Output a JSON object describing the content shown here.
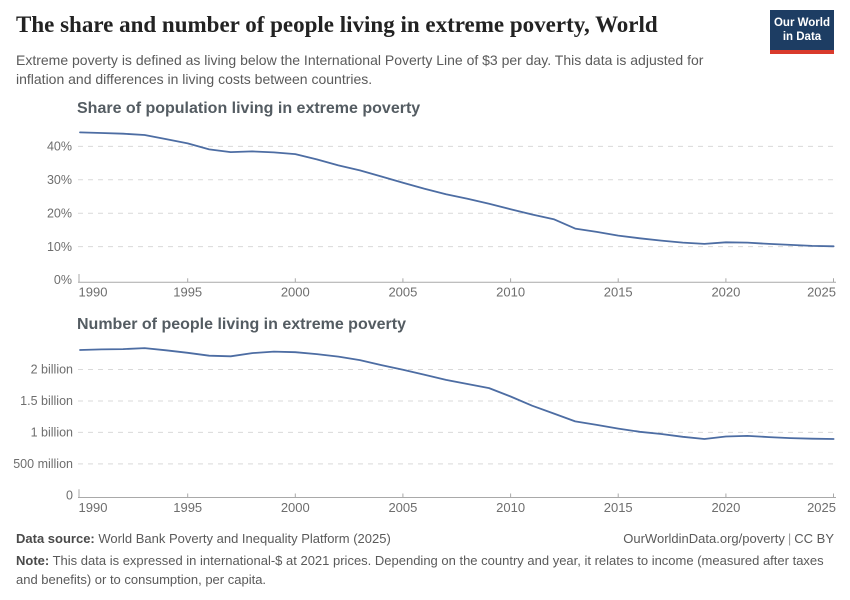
{
  "header": {
    "title": "The share and number of people living in extreme poverty, World",
    "subtitle_line1": "Extreme poverty is defined as living below the International Poverty Line of $3 per day. This data is adjusted for",
    "subtitle_line2": "inflation and differences in living costs between countries.",
    "logo_line1": "Our World",
    "logo_line2": "in Data"
  },
  "colors": {
    "line": "#4d6da3",
    "logo_background": "#1d3d63",
    "logo_red": "#d93a2c",
    "grid": "#d9d9d9",
    "axis": "#a9a9a9"
  },
  "chart_data": [
    {
      "type": "line",
      "title": "Share of population living in extreme poverty",
      "x": [
        1990,
        1991,
        1992,
        1993,
        1994,
        1995,
        1996,
        1997,
        1998,
        1999,
        2000,
        2001,
        2002,
        2003,
        2004,
        2005,
        2006,
        2007,
        2008,
        2009,
        2010,
        2011,
        2012,
        2013,
        2014,
        2015,
        2016,
        2017,
        2018,
        2019,
        2020,
        2021,
        2022,
        2023,
        2024,
        2025
      ],
      "series": [
        {
          "name": "World",
          "values": [
            44.2,
            44.0,
            43.8,
            43.4,
            42.2,
            40.9,
            39.1,
            38.3,
            38.5,
            38.2,
            37.7,
            36.1,
            34.3,
            32.8,
            31.0,
            29.1,
            27.3,
            25.7,
            24.3,
            22.8,
            21.2,
            19.6,
            18.2,
            15.4,
            14.4,
            13.3,
            12.5,
            11.8,
            11.2,
            10.8,
            11.3,
            11.2,
            10.8,
            10.5,
            10.2,
            10.1
          ]
        }
      ],
      "unit": "%",
      "xlim": [
        1990,
        2025
      ],
      "ylim": [
        0,
        45
      ],
      "yticks": {
        "values": [
          0,
          10,
          20,
          30,
          40
        ],
        "labels": [
          "0%",
          "10%",
          "20%",
          "30%",
          "40%"
        ]
      },
      "xticks": {
        "values": [
          1990,
          1995,
          2000,
          2005,
          2010,
          2015,
          2020,
          2025
        ],
        "labels": [
          "1990",
          "1995",
          "2000",
          "2005",
          "2010",
          "2015",
          "2020",
          "2025"
        ]
      },
      "grid": "horizontal-dashed",
      "legend": "none",
      "color": "#4d6da3"
    },
    {
      "type": "line",
      "title": "Number of people living in extreme poverty",
      "x": [
        1990,
        1991,
        1992,
        1993,
        1994,
        1995,
        1996,
        1997,
        1998,
        1999,
        2000,
        2001,
        2002,
        2003,
        2004,
        2005,
        2006,
        2007,
        2008,
        2009,
        2010,
        2011,
        2012,
        2013,
        2014,
        2015,
        2016,
        2017,
        2018,
        2019,
        2020,
        2021,
        2022,
        2023,
        2024,
        2025
      ],
      "series": [
        {
          "name": "World",
          "values": [
            2310,
            2320,
            2325,
            2340,
            2305,
            2265,
            2220,
            2210,
            2260,
            2285,
            2275,
            2245,
            2205,
            2150,
            2070,
            1995,
            1915,
            1835,
            1770,
            1705,
            1570,
            1425,
            1300,
            1175,
            1120,
            1060,
            1010,
            975,
            930,
            895,
            935,
            945,
            925,
            910,
            900,
            895
          ]
        }
      ],
      "unit": "million people",
      "xlim": [
        1990,
        2025
      ],
      "ylim": [
        0,
        2400
      ],
      "yticks": {
        "values": [
          0,
          500,
          1000,
          1500,
          2000
        ],
        "labels": [
          "0",
          "500 million",
          "1 billion",
          "1.5 billion",
          "2 billion"
        ]
      },
      "xticks": {
        "values": [
          1990,
          1995,
          2000,
          2005,
          2010,
          2015,
          2020,
          2025
        ],
        "labels": [
          "1990",
          "1995",
          "2000",
          "2005",
          "2010",
          "2015",
          "2020",
          "2025"
        ]
      },
      "grid": "horizontal-dashed",
      "legend": "none",
      "color": "#4d6da3"
    }
  ],
  "footer": {
    "source_label": "Data source:",
    "source": "World Bank Poverty and Inequality Platform (2025)",
    "url": "OurWorldinData.org/poverty",
    "separator": "|",
    "license": "CC BY",
    "note_label": "Note:",
    "note_line1": "This data is expressed in international-$ at 2021 prices. Depending on the country and year, it relates to income (measured after taxes",
    "note_line2": "and benefits) or to consumption, per capita."
  }
}
